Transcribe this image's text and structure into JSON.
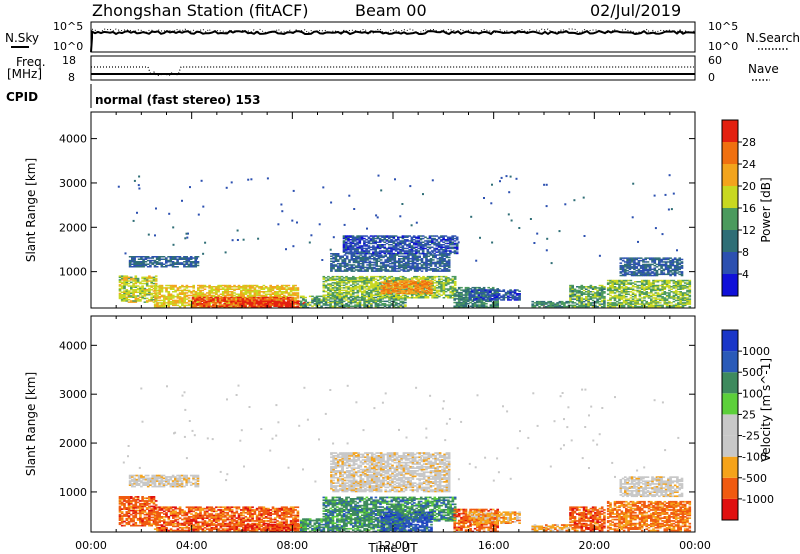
{
  "header": {
    "station": "Zhongshan Station (fitACF)",
    "beam": "Beam 00",
    "date": "02/Jul/2019"
  },
  "top_panels": {
    "nsky_label": "N.Sky",
    "nsearch_label": "N.Search",
    "noise_ticks_left": [
      "10^5",
      "10^0"
    ],
    "noise_ticks_right": [
      "10^5",
      "10^0"
    ],
    "freq_label_1": "Freq.",
    "freq_label_2": "[MHz]",
    "freq_ticks": [
      "18",
      "8"
    ],
    "nave_label": "Nave",
    "nave_ticks": [
      "60",
      "0"
    ],
    "cpid_label": "CPID",
    "cpid_text": "normal (fast stereo) 153"
  },
  "colors": {
    "power": [
      "#1010d8",
      "#2c50b0",
      "#2f6e76",
      "#4b9a5e",
      "#c8d820",
      "#f3a41c",
      "#f07010",
      "#e42010"
    ],
    "velocity": [
      "#e01010",
      "#f05a10",
      "#f5a31a",
      "#c8c8c8",
      "#c8c8c8",
      "#5ccf3a",
      "#3e8a5e",
      "#2a5ab8",
      "#1a36c8"
    ]
  },
  "chart_data": [
    {
      "type": "heatmap",
      "panel": "power",
      "ylabel": "Slant Range [km]",
      "yticks": [
        "1000",
        "2000",
        "3000",
        "4000"
      ],
      "ylim": [
        180,
        4600
      ],
      "xlim_hours": [
        0,
        24
      ],
      "colorbar_label": "Power [dB]",
      "colorbar_ticks": [
        "4",
        "8",
        "12",
        "16",
        "20",
        "24",
        "28"
      ],
      "colorbar_range": [
        0,
        32
      ],
      "regions": [
        {
          "t0": 1.1,
          "t1": 2.6,
          "r0": 300,
          "r1": 900,
          "value": 18
        },
        {
          "t0": 1.5,
          "t1": 4.2,
          "r0": 1100,
          "r1": 1350,
          "value": 8
        },
        {
          "t0": 2.5,
          "t1": 8.2,
          "r0": 200,
          "r1": 700,
          "value": 20
        },
        {
          "t0": 4.0,
          "t1": 8.0,
          "r0": 180,
          "r1": 420,
          "value": 28
        },
        {
          "t0": 6.0,
          "t1": 8.5,
          "r0": 180,
          "r1": 330,
          "value": 30
        },
        {
          "t0": 8.3,
          "t1": 12.5,
          "r0": 180,
          "r1": 450,
          "value": 14
        },
        {
          "t0": 9.2,
          "t1": 14.5,
          "r0": 400,
          "r1": 900,
          "value": 16
        },
        {
          "t0": 11.5,
          "t1": 13.5,
          "r0": 500,
          "r1": 800,
          "value": 24
        },
        {
          "t0": 9.5,
          "t1": 14.2,
          "r0": 1000,
          "r1": 1400,
          "value": 8
        },
        {
          "t0": 10.0,
          "t1": 14.5,
          "r0": 1400,
          "r1": 1800,
          "value": 6
        },
        {
          "t0": 14.4,
          "t1": 16.2,
          "r0": 180,
          "r1": 650,
          "value": 12
        },
        {
          "t0": 15.0,
          "t1": 17.0,
          "r0": 350,
          "r1": 600,
          "value": 6
        },
        {
          "t0": 17.5,
          "t1": 19.0,
          "r0": 200,
          "r1": 320,
          "value": 12
        },
        {
          "t0": 19.0,
          "t1": 20.4,
          "r0": 200,
          "r1": 700,
          "value": 14
        },
        {
          "t0": 20.5,
          "t1": 23.8,
          "r0": 200,
          "r1": 800,
          "value": 16
        },
        {
          "t0": 21.0,
          "t1": 23.5,
          "r0": 900,
          "r1": 1300,
          "value": 8
        }
      ]
    },
    {
      "type": "heatmap",
      "panel": "velocity",
      "ylabel": "Slant Range [km]",
      "yticks": [
        "1000",
        "2000",
        "3000",
        "4000"
      ],
      "ylim": [
        180,
        4600
      ],
      "xlim_hours": [
        0,
        24
      ],
      "xticks": [
        "00:00",
        "04:00",
        "08:00",
        "12:00",
        "16:00",
        "20:00",
        "00:00"
      ],
      "xlabel": "Time UT",
      "colorbar_label": "Velocity [m s^-1]",
      "colorbar_ticks": [
        "-1000",
        "-500",
        "-100",
        "-25",
        "25",
        "100",
        "500",
        "1000"
      ],
      "colorbar_range": [
        0,
        9
      ],
      "regions": [
        {
          "t0": 1.1,
          "t1": 2.6,
          "r0": 300,
          "r1": 900,
          "value": 1.5
        },
        {
          "t0": 1.5,
          "t1": 4.2,
          "r0": 1100,
          "r1": 1350,
          "value": 3.5
        },
        {
          "t0": 2.5,
          "t1": 8.2,
          "r0": 200,
          "r1": 700,
          "value": 1.5
        },
        {
          "t0": 6.0,
          "t1": 8.5,
          "r0": 180,
          "r1": 330,
          "value": 1.3
        },
        {
          "t0": 8.3,
          "t1": 12.5,
          "r0": 180,
          "r1": 450,
          "value": 6.5
        },
        {
          "t0": 9.2,
          "t1": 14.5,
          "r0": 400,
          "r1": 900,
          "value": 6.5
        },
        {
          "t0": 11.5,
          "t1": 13.5,
          "r0": 180,
          "r1": 600,
          "value": 7.5
        },
        {
          "t0": 9.5,
          "t1": 14.2,
          "r0": 1000,
          "r1": 1800,
          "value": 3.5
        },
        {
          "t0": 14.4,
          "t1": 16.2,
          "r0": 180,
          "r1": 650,
          "value": 1.5
        },
        {
          "t0": 15.0,
          "t1": 17.0,
          "r0": 350,
          "r1": 600,
          "value": 2.5
        },
        {
          "t0": 17.5,
          "t1": 19.0,
          "r0": 200,
          "r1": 320,
          "value": 2.5
        },
        {
          "t0": 19.0,
          "t1": 20.4,
          "r0": 200,
          "r1": 700,
          "value": 1.5
        },
        {
          "t0": 20.5,
          "t1": 23.8,
          "r0": 200,
          "r1": 800,
          "value": 1.8
        },
        {
          "t0": 21.0,
          "t1": 23.5,
          "r0": 900,
          "r1": 1300,
          "value": 3.5
        }
      ]
    }
  ]
}
